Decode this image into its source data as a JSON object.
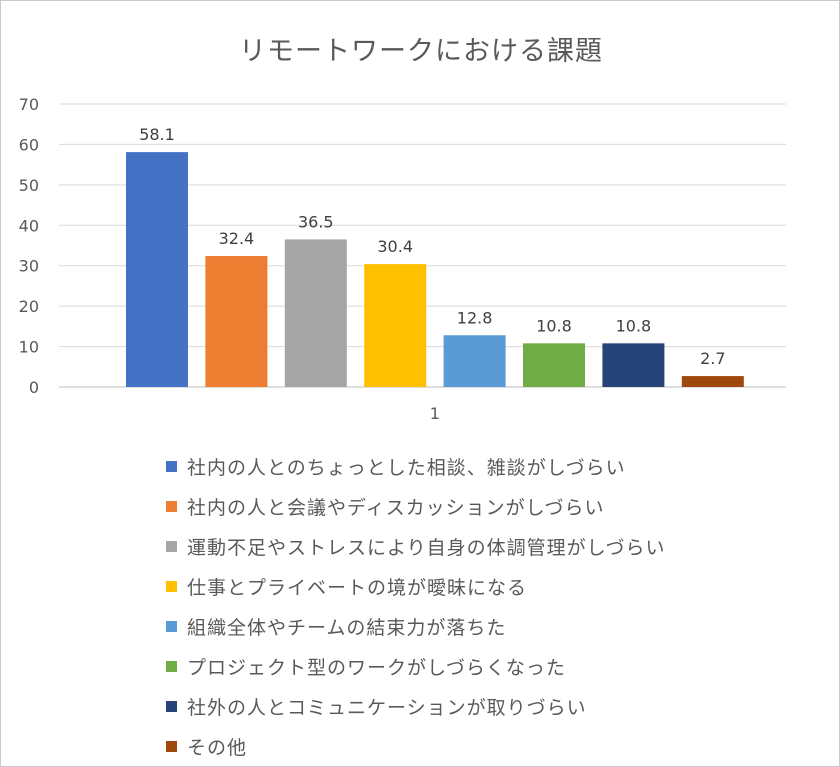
{
  "chart_data": {
    "type": "bar",
    "title": "リモートワークにおける課題",
    "categories": [
      "1"
    ],
    "series": [
      {
        "name": "社内の人とのちょっとした相談、雑談がしづらい",
        "values": [
          58.1
        ],
        "color": "#4472C4"
      },
      {
        "name": "社内の人と会議やディスカッションがしづらい",
        "values": [
          32.4
        ],
        "color": "#ED7D31"
      },
      {
        "name": "運動不足やストレスにより自身の体調管理がしづらい",
        "values": [
          36.5
        ],
        "color": "#A5A5A5"
      },
      {
        "name": "仕事とプライベートの境が曖昧になる",
        "values": [
          30.4
        ],
        "color": "#FFC000"
      },
      {
        "name": "組織全体やチームの結束力が落ちた",
        "values": [
          12.8
        ],
        "color": "#5B9BD5"
      },
      {
        "name": "プロジェクト型のワークがしづらくなった",
        "values": [
          10.8
        ],
        "color": "#70AD47"
      },
      {
        "name": "社外の人とコミュニケーションが取りづらい",
        "values": [
          10.8
        ],
        "color": "#264478"
      },
      {
        "name": "その他",
        "values": [
          2.7
        ],
        "color": "#9E480E"
      }
    ],
    "data_labels": [
      "58.1",
      "32.4",
      "36.5",
      "30.4",
      "12.8",
      "10.8",
      "10.8",
      "2.7"
    ],
    "xlabel": "",
    "ylabel": "",
    "ylim": [
      0,
      70
    ],
    "yticks": [
      0,
      10,
      20,
      30,
      40,
      50,
      60,
      70
    ],
    "grid": true,
    "legend_position": "bottom"
  }
}
